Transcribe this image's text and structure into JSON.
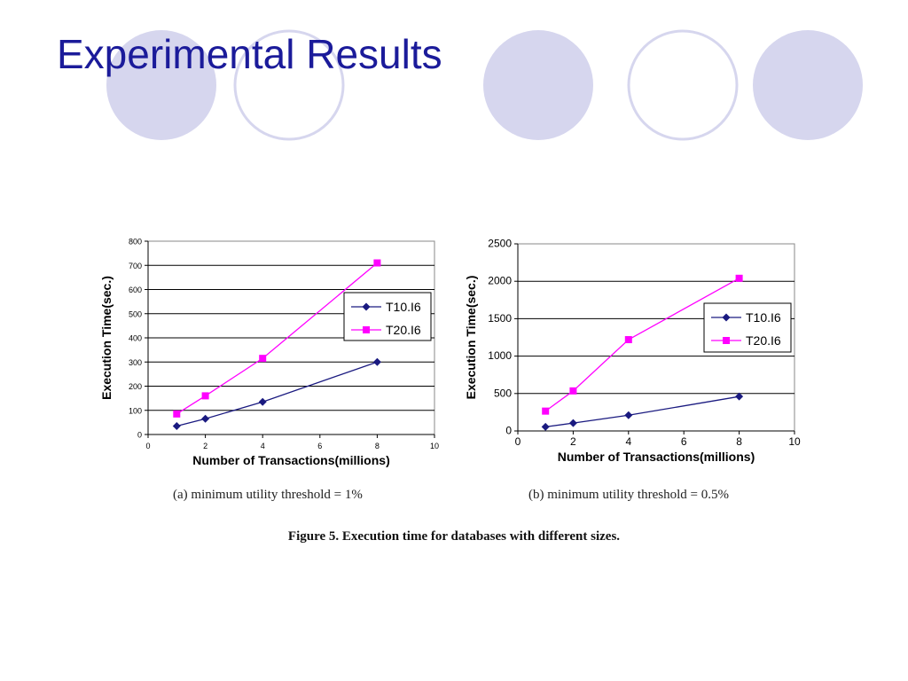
{
  "slide": {
    "title": "Experimental Results",
    "figure_caption": "Figure 5. Execution time for databases with different sizes.",
    "colors": {
      "title": "#1b1b9a",
      "circle_fill": "#d6d6ee",
      "circle_stroke": "#d6d6ee"
    }
  },
  "chart_data": [
    {
      "type": "line",
      "caption": "(a) minimum utility threshold = 1%",
      "xlabel": "Number of Transactions(millions)",
      "ylabel": "Execution Time(sec.)",
      "xlim": [
        0,
        10
      ],
      "ylim": [
        0,
        800
      ],
      "xticks": [
        0,
        2,
        4,
        6,
        8,
        10
      ],
      "yticks": [
        0,
        100,
        200,
        300,
        400,
        500,
        600,
        700,
        800
      ],
      "grid": true,
      "legend": "right",
      "x": [
        1,
        2,
        4,
        8
      ],
      "series": [
        {
          "name": "T10.I6",
          "color": "#1a1a80",
          "marker": "diamond",
          "values": [
            35,
            65,
            135,
            300
          ]
        },
        {
          "name": "T20.I6",
          "color": "#ff00ff",
          "marker": "square",
          "values": [
            85,
            160,
            315,
            710
          ]
        }
      ]
    },
    {
      "type": "line",
      "caption": "(b) minimum utility threshold = 0.5%",
      "xlabel": "Number of Transactions(millions)",
      "ylabel": "Execution Time(sec.)",
      "xlim": [
        0,
        10
      ],
      "ylim": [
        0,
        2500
      ],
      "xticks": [
        0,
        2,
        4,
        6,
        8,
        10
      ],
      "yticks": [
        0,
        500,
        1000,
        1500,
        2000,
        2500
      ],
      "grid": true,
      "legend": "right",
      "x": [
        1,
        2,
        4,
        8
      ],
      "series": [
        {
          "name": "T10.I6",
          "color": "#1a1a80",
          "marker": "diamond",
          "values": [
            55,
            105,
            210,
            460
          ]
        },
        {
          "name": "T20.I6",
          "color": "#ff00ff",
          "marker": "square",
          "values": [
            265,
            535,
            1220,
            2040
          ]
        }
      ]
    }
  ]
}
